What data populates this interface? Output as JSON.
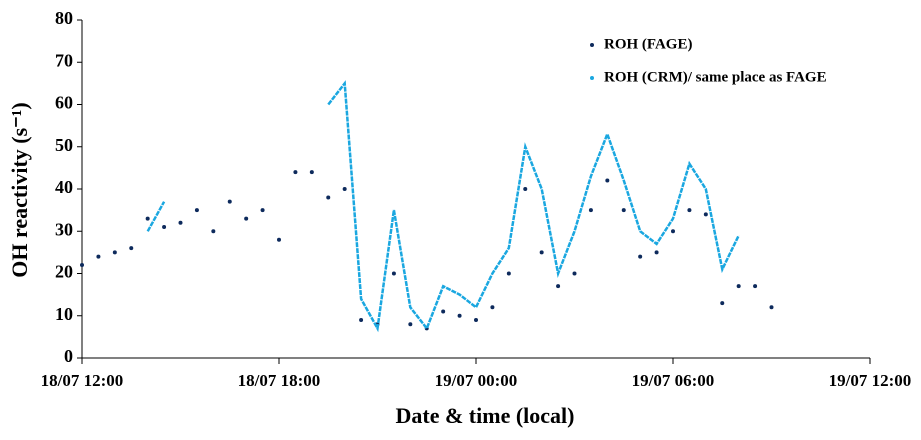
{
  "chart_data": {
    "type": "line",
    "xlabel": "Date & time (local)",
    "ylabel": "OH reactivity (s⁻¹)",
    "x": [
      "18/07 12:00",
      "18/07 12:30",
      "18/07 13:00",
      "18/07 13:30",
      "18/07 14:00",
      "18/07 14:30",
      "18/07 15:00",
      "18/07 15:30",
      "18/07 16:00",
      "18/07 16:30",
      "18/07 17:00",
      "18/07 17:30",
      "18/07 18:00",
      "18/07 18:30",
      "18/07 19:00",
      "18/07 19:30",
      "18/07 20:00",
      "18/07 20:30",
      "18/07 21:00",
      "18/07 21:30",
      "18/07 22:00",
      "18/07 22:30",
      "18/07 23:00",
      "18/07 23:30",
      "19/07 00:00",
      "19/07 00:30",
      "19/07 01:00",
      "19/07 01:30",
      "19/07 02:00",
      "19/07 02:30",
      "19/07 03:00",
      "19/07 03:30",
      "19/07 04:00",
      "19/07 04:30",
      "19/07 05:00",
      "19/07 05:30",
      "19/07 06:00",
      "19/07 06:30",
      "19/07 07:00",
      "19/07 07:30",
      "19/07 08:00",
      "19/07 08:30",
      "19/07 09:00"
    ],
    "series": [
      {
        "name": "ROH (FAGE)",
        "color": "#0d2a5c",
        "style": "dots",
        "values": [
          22,
          24,
          25,
          26,
          33,
          31,
          32,
          35,
          30,
          37,
          33,
          35,
          28,
          44,
          44,
          38,
          40,
          9,
          8,
          20,
          8,
          7,
          11,
          10,
          9,
          12,
          20,
          40,
          25,
          17,
          20,
          35,
          42,
          35,
          24,
          25,
          30,
          35,
          34,
          13,
          17,
          17,
          12
        ]
      },
      {
        "name": "ROH (CRM)/ same place as FAGE",
        "color": "#1aa7e0",
        "style": "line",
        "values": [
          null,
          null,
          null,
          null,
          30,
          37,
          null,
          null,
          null,
          null,
          null,
          null,
          null,
          null,
          null,
          60,
          65,
          14,
          7,
          35,
          12,
          7,
          17,
          15,
          12,
          20,
          26,
          50,
          40,
          20,
          30,
          43,
          53,
          42,
          30,
          27,
          33,
          46,
          40,
          21,
          29,
          null,
          null
        ]
      }
    ],
    "xlim": [
      "18/07 12:00",
      "19/07 12:00"
    ],
    "xticks": [
      "18/07 12:00",
      "18/07 18:00",
      "19/07 00:00",
      "19/07 06:00",
      "19/07 12:00"
    ],
    "ylim": [
      0,
      80
    ],
    "yticks": [
      0,
      10,
      20,
      30,
      40,
      50,
      60,
      70,
      80
    ]
  }
}
